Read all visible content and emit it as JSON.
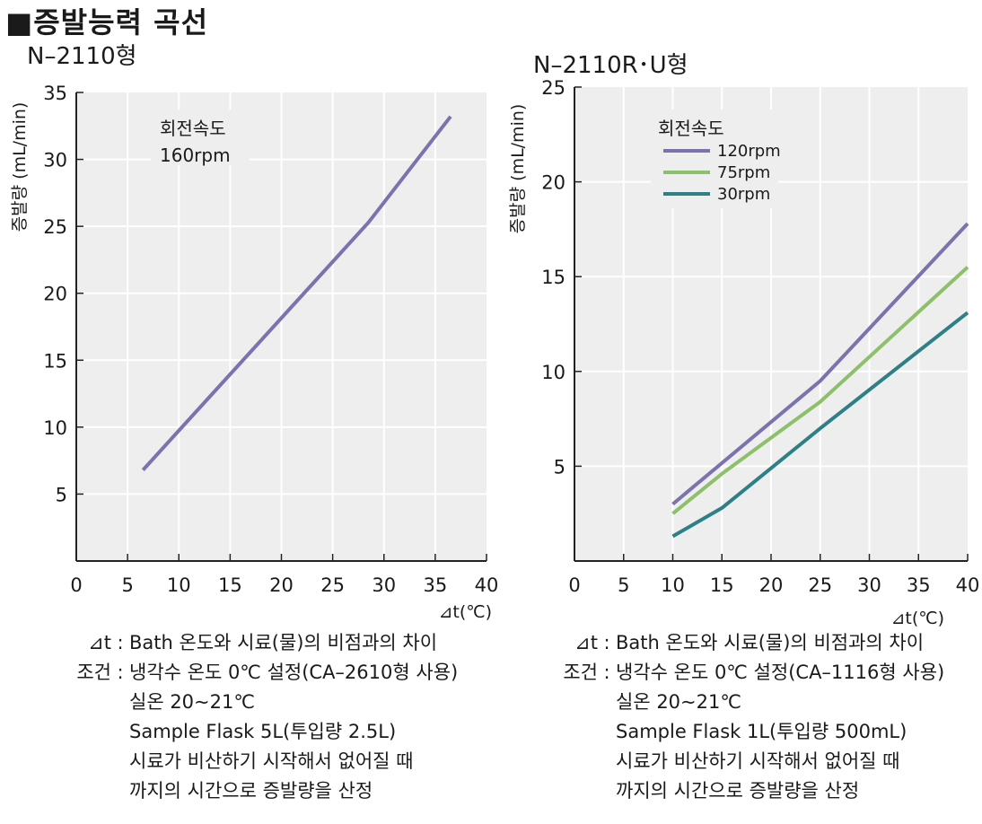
{
  "page": {
    "title": "■증발능력 곡선"
  },
  "chart_data": [
    {
      "type": "line",
      "subtitle": "N–2110형",
      "ylabel": "증발량 (mL/min)",
      "xlabel": "⊿t(℃)",
      "x_ticks": [
        0,
        5,
        10,
        15,
        20,
        25,
        30,
        35,
        40
      ],
      "y_ticks": [
        5,
        10,
        15,
        20,
        25,
        30,
        35
      ],
      "xlim": [
        0,
        40
      ],
      "ylim": [
        0,
        35
      ],
      "grid": true,
      "legend": {
        "title": "회전속도",
        "placement": "top-left"
      },
      "series": [
        {
          "name": "160rpm",
          "color": "#7b72ae",
          "x": [
            6.5,
            28.5,
            36.5
          ],
          "y": [
            6.8,
            25.3,
            33.2
          ]
        }
      ],
      "notes": {
        "delta_t_key": "⊿t",
        "delta_t_text": "Bath 온도와 시료(물)의 비점과의 차이",
        "condition_key": "조건",
        "condition_lines": [
          "냉각수 온도 0℃ 설정(CA–2610형 사용)",
          "실온 20∼21℃",
          "Sample Flask 5L(투입량 2.5L)",
          "시료가 비산하기 시작해서 없어질 때",
          "까지의 시간으로 증발량을 산정"
        ]
      }
    },
    {
      "type": "line",
      "subtitle": "N–2110R･U형",
      "ylabel": "증발량 (mL/min)",
      "xlabel": "⊿t(℃)",
      "x_ticks": [
        0,
        5,
        10,
        15,
        20,
        25,
        30,
        35,
        40
      ],
      "y_ticks": [
        5,
        10,
        15,
        20,
        25
      ],
      "xlim": [
        0,
        40
      ],
      "ylim": [
        0,
        25
      ],
      "grid": true,
      "legend": {
        "title": "회전속도",
        "placement": "top-left"
      },
      "series": [
        {
          "name": "120rpm",
          "color": "#7b72ae",
          "x": [
            10,
            25,
            40
          ],
          "y": [
            3.0,
            9.5,
            17.8
          ]
        },
        {
          "name": "75rpm",
          "color": "#8dc06a",
          "x": [
            10,
            15,
            25,
            40
          ],
          "y": [
            2.5,
            4.6,
            8.4,
            15.5
          ]
        },
        {
          "name": "30rpm",
          "color": "#2e8087",
          "x": [
            10,
            15,
            25,
            40
          ],
          "y": [
            1.3,
            2.8,
            7.0,
            13.1
          ]
        }
      ],
      "notes": {
        "delta_t_key": "⊿t",
        "delta_t_text": "Bath 온도와 시료(물)의 비점과의 차이",
        "condition_key": "조건",
        "condition_lines": [
          "냉각수 온도 0℃ 설정(CA–1116형 사용)",
          "실온 20∼21℃",
          "Sample Flask 1L(투입량 500mL)",
          "시료가 비산하기 시작해서 없어질 때",
          "까지의 시간으로 증발량을 산정"
        ]
      }
    }
  ]
}
